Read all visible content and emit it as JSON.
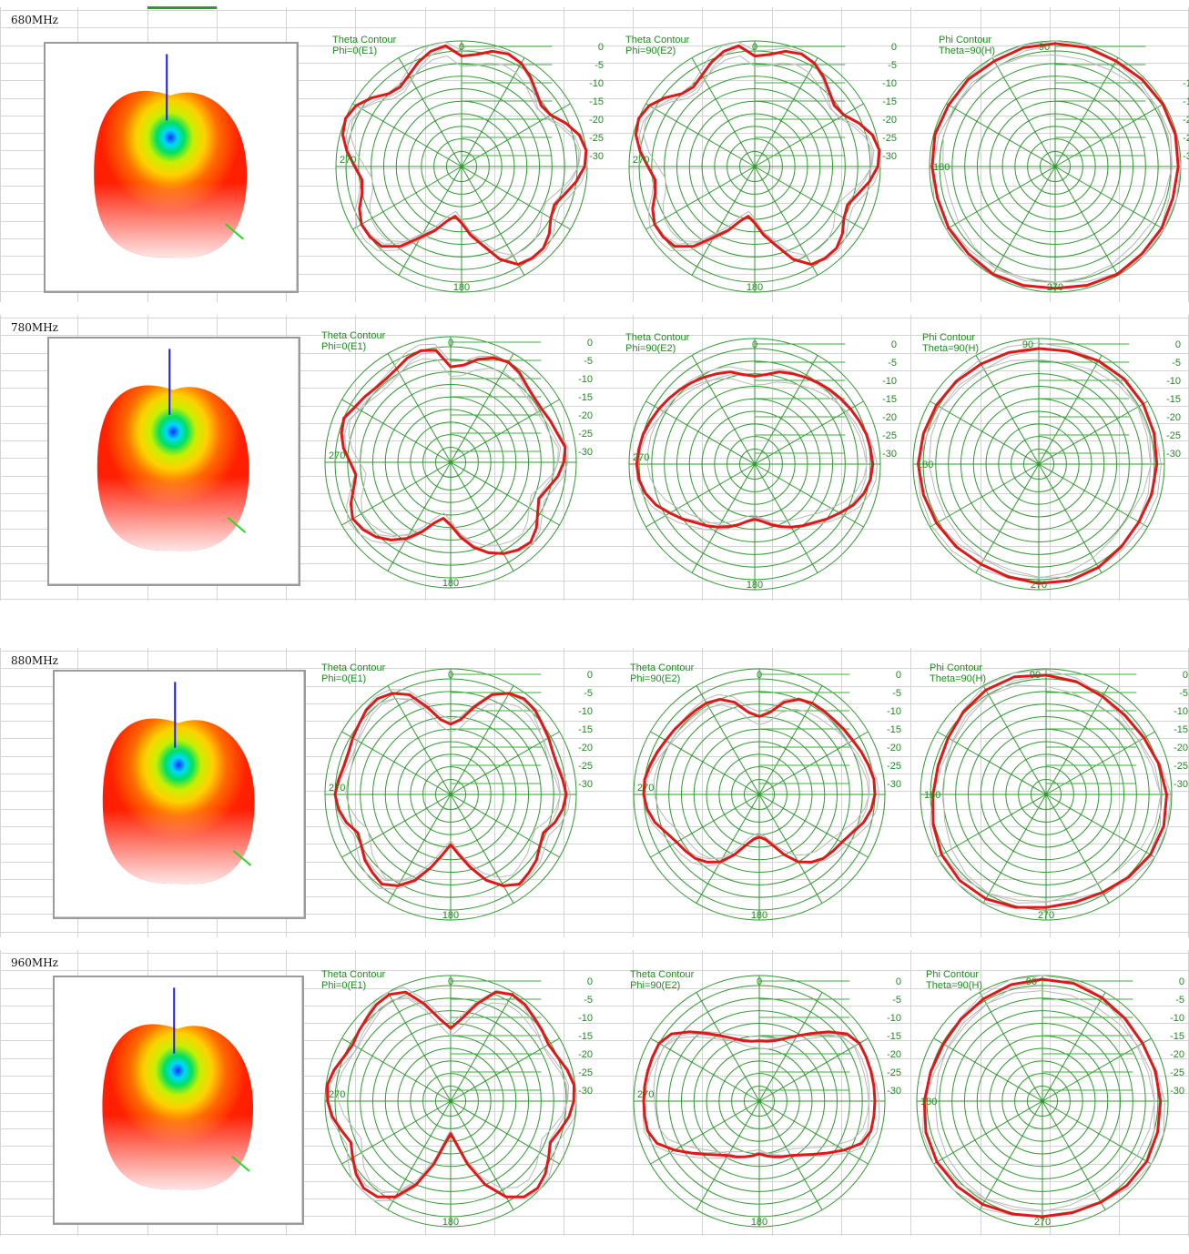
{
  "blocks": [
    {
      "label": "680MHz",
      "plots": [
        {
          "title1": "Theta Contour",
          "title2": "Phi=0(E1)",
          "top": "0",
          "left": "270",
          "bottom": "180",
          "right": "",
          "r": [
            0.88,
            0.9,
            0.95,
            0.97,
            0.95,
            0.9,
            0.84,
            0.8,
            0.82,
            0.9,
            0.97,
            1.0,
            0.98,
            0.92,
            0.85,
            0.8,
            0.82,
            0.88,
            0.92,
            0.92,
            0.9,
            0.8,
            0.65,
            0.55,
            0.45,
            0.4,
            0.45,
            0.55,
            0.65,
            0.8,
            0.9,
            0.92,
            0.92,
            0.88,
            0.82,
            0.8,
            0.85,
            0.92,
            0.98,
            1.0,
            0.97,
            0.9,
            0.82,
            0.8,
            0.84,
            0.9,
            0.95,
            0.97
          ]
        },
        {
          "title1": "Theta Contour",
          "title2": "Phi=90(E2)",
          "top": "0",
          "left": "270",
          "bottom": "180",
          "right": "",
          "r": [
            0.88,
            0.9,
            0.95,
            0.97,
            0.95,
            0.9,
            0.84,
            0.8,
            0.82,
            0.9,
            0.97,
            1.0,
            0.98,
            0.92,
            0.85,
            0.8,
            0.82,
            0.88,
            0.92,
            0.92,
            0.9,
            0.8,
            0.65,
            0.55,
            0.45,
            0.4,
            0.45,
            0.55,
            0.65,
            0.8,
            0.9,
            0.92,
            0.92,
            0.88,
            0.82,
            0.8,
            0.85,
            0.92,
            0.98,
            1.0,
            0.97,
            0.9,
            0.82,
            0.8,
            0.84,
            0.9,
            0.95,
            0.97
          ]
        },
        {
          "title1": "Phi Contour",
          "title2": "Theta=90(H)",
          "top": "90",
          "left": "180",
          "bottom": "270",
          "right": "",
          "r": [
            0.98,
            0.98,
            0.97,
            0.98,
            0.99,
            0.99,
            0.98,
            0.97,
            0.98,
            0.98,
            0.99,
            0.98,
            0.97,
            0.98,
            0.99,
            0.98,
            0.98,
            0.97,
            0.98,
            0.99,
            0.98,
            0.98,
            0.97,
            0.98
          ]
        }
      ]
    },
    {
      "label": "780MHz",
      "plots": [
        {
          "title1": "Theta Contour",
          "title2": "Phi=0(E1)",
          "top": "0",
          "left": "270",
          "bottom": "180",
          "right": "",
          "r": [
            0.76,
            0.78,
            0.85,
            0.9,
            0.92,
            0.9,
            0.86,
            0.84,
            0.84,
            0.86,
            0.88,
            0.92,
            0.9,
            0.86,
            0.8,
            0.76,
            0.8,
            0.86,
            0.9,
            0.88,
            0.84,
            0.78,
            0.7,
            0.6,
            0.5,
            0.45,
            0.5,
            0.6,
            0.7,
            0.78,
            0.84,
            0.88,
            0.9,
            0.86,
            0.8,
            0.76,
            0.8,
            0.86,
            0.9,
            0.92,
            0.88,
            0.86,
            0.84,
            0.84,
            0.86,
            0.9,
            0.92,
            0.9
          ]
        },
        {
          "title1": "Theta Contour",
          "title2": "Phi=90(E2)",
          "top": "0",
          "left": "270",
          "bottom": "180",
          "right": "",
          "r": [
            0.7,
            0.72,
            0.76,
            0.78,
            0.8,
            0.82,
            0.84,
            0.86,
            0.88,
            0.9,
            0.92,
            0.93,
            0.94,
            0.93,
            0.9,
            0.85,
            0.78,
            0.72,
            0.66,
            0.62,
            0.58,
            0.54,
            0.5,
            0.46,
            0.44,
            0.46,
            0.5,
            0.54,
            0.58,
            0.62,
            0.66,
            0.72,
            0.78,
            0.85,
            0.9,
            0.93,
            0.94,
            0.93,
            0.92,
            0.9,
            0.88,
            0.86,
            0.84,
            0.82,
            0.8,
            0.78,
            0.76,
            0.72
          ]
        },
        {
          "title1": "Phi Contour",
          "title2": "Theta=90(H)",
          "top": "90",
          "left": "180",
          "bottom": "270",
          "right": "",
          "r": [
            0.92,
            0.93,
            0.95,
            0.96,
            0.96,
            0.95,
            0.94,
            0.93,
            0.92,
            0.93,
            0.95,
            0.96,
            0.95,
            0.93,
            0.92,
            0.93,
            0.94,
            0.95,
            0.96,
            0.95,
            0.94,
            0.93,
            0.92,
            0.92
          ]
        }
      ]
    },
    {
      "label": "880MHz",
      "plots": [
        {
          "title1": "Theta Contour",
          "title2": "Phi=0(E1)",
          "top": "0",
          "left": "270",
          "bottom": "180",
          "right": "",
          "r": [
            0.56,
            0.6,
            0.72,
            0.86,
            0.93,
            0.96,
            0.95,
            0.92,
            0.9,
            0.88,
            0.88,
            0.9,
            0.92,
            0.9,
            0.86,
            0.8,
            0.82,
            0.86,
            0.88,
            0.9,
            0.84,
            0.74,
            0.6,
            0.48,
            0.4,
            0.48,
            0.6,
            0.74,
            0.84,
            0.9,
            0.88,
            0.86,
            0.82,
            0.8,
            0.86,
            0.9,
            0.92,
            0.9,
            0.88,
            0.88,
            0.9,
            0.92,
            0.95,
            0.96,
            0.93,
            0.86,
            0.72,
            0.6
          ]
        },
        {
          "title1": "Theta Contour",
          "title2": "Phi=90(E2)",
          "top": "0",
          "left": "270",
          "bottom": "180",
          "right": "",
          "r": [
            0.62,
            0.66,
            0.76,
            0.82,
            0.84,
            0.84,
            0.84,
            0.85,
            0.86,
            0.88,
            0.9,
            0.92,
            0.92,
            0.9,
            0.86,
            0.8,
            0.76,
            0.74,
            0.72,
            0.68,
            0.62,
            0.52,
            0.42,
            0.36,
            0.34,
            0.36,
            0.42,
            0.52,
            0.62,
            0.68,
            0.72,
            0.74,
            0.76,
            0.8,
            0.86,
            0.9,
            0.92,
            0.92,
            0.9,
            0.88,
            0.86,
            0.85,
            0.84,
            0.84,
            0.84,
            0.82,
            0.76,
            0.66
          ]
        },
        {
          "title1": "Phi Contour",
          "title2": "Theta=90(H)",
          "top": "90",
          "left": "180",
          "bottom": "270",
          "right": "",
          "r": [
            0.95,
            0.93,
            0.9,
            0.89,
            0.9,
            0.93,
            0.96,
            0.97,
            0.96,
            0.93,
            0.9,
            0.89,
            0.9,
            0.93,
            0.96,
            0.97,
            0.96,
            0.93,
            0.9,
            0.89,
            0.9,
            0.93,
            0.96,
            0.97
          ]
        }
      ]
    },
    {
      "label": "960MHz",
      "plots": [
        {
          "title1": "Theta Contour",
          "title2": "Phi=0(E1)",
          "top": "0",
          "left": "270",
          "bottom": "180",
          "right": "",
          "r": [
            0.58,
            0.66,
            0.8,
            0.94,
            0.98,
            0.97,
            0.94,
            0.92,
            0.9,
            0.92,
            0.96,
            0.99,
            0.98,
            0.95,
            0.9,
            0.86,
            0.9,
            0.95,
            0.98,
            0.96,
            0.88,
            0.72,
            0.52,
            0.34,
            0.26,
            0.34,
            0.52,
            0.72,
            0.88,
            0.96,
            0.98,
            0.95,
            0.9,
            0.86,
            0.9,
            0.95,
            0.98,
            0.99,
            0.96,
            0.92,
            0.9,
            0.92,
            0.94,
            0.97,
            0.98,
            0.94,
            0.8,
            0.66
          ]
        },
        {
          "title1": "Theta Contour",
          "title2": "Phi=90(E2)",
          "top": "0",
          "left": "270",
          "bottom": "180",
          "right": "",
          "r": [
            0.48,
            0.48,
            0.5,
            0.54,
            0.6,
            0.68,
            0.78,
            0.88,
            0.92,
            0.92,
            0.92,
            0.92,
            0.92,
            0.92,
            0.92,
            0.88,
            0.78,
            0.68,
            0.6,
            0.54,
            0.5,
            0.48,
            0.46,
            0.44,
            0.42,
            0.44,
            0.46,
            0.48,
            0.5,
            0.54,
            0.6,
            0.68,
            0.78,
            0.88,
            0.92,
            0.92,
            0.92,
            0.92,
            0.92,
            0.92,
            0.92,
            0.88,
            0.78,
            0.68,
            0.6,
            0.54,
            0.5,
            0.48
          ]
        },
        {
          "title1": "Phi Contour",
          "title2": "Theta=90(H)",
          "top": "90",
          "left": "180",
          "bottom": "270",
          "right": "",
          "r": [
            0.97,
            0.97,
            0.95,
            0.93,
            0.92,
            0.93,
            0.94,
            0.95,
            0.96,
            0.95,
            0.93,
            0.92,
            0.92,
            0.93,
            0.95,
            0.96,
            0.97,
            0.96,
            0.94,
            0.92,
            0.91,
            0.92,
            0.94,
            0.96
          ]
        }
      ]
    }
  ],
  "db_ticks": [
    "0",
    "-5",
    "-10",
    "-15",
    "-20",
    "-25",
    "-30"
  ],
  "chart_data": {
    "type": "polar",
    "title": "",
    "frequencies": [
      "680MHz",
      "780MHz",
      "880MHz",
      "960MHz"
    ],
    "radial_ticks_db": [
      0,
      -5,
      -10,
      -15,
      -20,
      -25,
      -30
    ],
    "note_series_color": "#e01818"
  },
  "colors": {
    "grid": "#2e9a2e",
    "grid_light": "#3fae3f",
    "trace": "#e01818",
    "ghost": "#b8b8b8",
    "cell_line": "#d4d4d4",
    "label_green": "#1e8c1e"
  }
}
